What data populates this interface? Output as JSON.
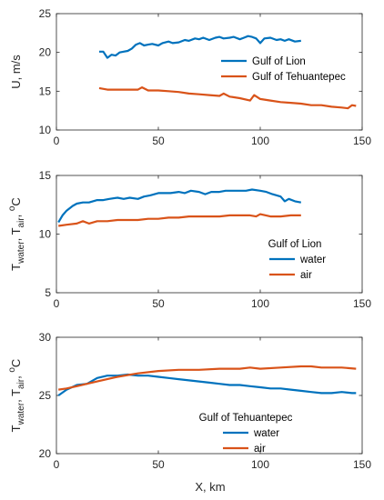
{
  "figure": {
    "xlabel": "X, km"
  },
  "colors": {
    "blue": "#0072BD",
    "orange": "#D95319"
  },
  "chart_data": [
    {
      "type": "line",
      "ylabel": "U, m/s",
      "xlim": [
        0,
        150
      ],
      "ylim": [
        10,
        25
      ],
      "xticks": [
        0,
        50,
        100,
        150
      ],
      "yticks": [
        10,
        15,
        20,
        25
      ],
      "legend": {
        "placement": "right",
        "title": ""
      },
      "series": [
        {
          "name": "Gulf of Lion",
          "color": "#0072BD",
          "x": [
            21,
            23,
            25,
            27,
            29,
            31,
            33,
            35,
            37,
            39,
            41,
            43,
            45,
            47,
            50,
            52,
            55,
            57,
            60,
            63,
            65,
            68,
            70,
            72,
            75,
            78,
            80,
            82,
            85,
            87,
            90,
            92,
            94,
            96,
            98,
            100,
            102,
            105,
            108,
            110,
            112,
            114,
            117,
            120
          ],
          "y": [
            20.1,
            20.1,
            19.3,
            19.7,
            19.6,
            20.0,
            20.1,
            20.2,
            20.5,
            21.0,
            21.2,
            20.9,
            21.0,
            21.1,
            20.9,
            21.2,
            21.4,
            21.2,
            21.3,
            21.6,
            21.5,
            21.8,
            21.7,
            21.9,
            21.6,
            21.9,
            22.0,
            21.8,
            21.9,
            22.0,
            21.7,
            21.9,
            22.1,
            22.0,
            21.8,
            21.2,
            21.8,
            21.9,
            21.6,
            21.7,
            21.5,
            21.7,
            21.4,
            21.5
          ]
        },
        {
          "name": "Gulf of Tehuantepec",
          "color": "#D95319",
          "x": [
            21,
            25,
            30,
            35,
            40,
            42,
            45,
            50,
            55,
            60,
            65,
            70,
            75,
            80,
            82,
            85,
            90,
            95,
            97,
            100,
            105,
            110,
            115,
            120,
            125,
            130,
            135,
            140,
            143,
            145,
            147
          ],
          "y": [
            15.4,
            15.2,
            15.2,
            15.2,
            15.2,
            15.5,
            15.1,
            15.1,
            15.0,
            14.9,
            14.7,
            14.6,
            14.5,
            14.4,
            14.7,
            14.3,
            14.1,
            13.8,
            14.5,
            14.0,
            13.8,
            13.6,
            13.5,
            13.4,
            13.2,
            13.2,
            13.0,
            12.9,
            12.8,
            13.2,
            13.1
          ]
        }
      ]
    },
    {
      "type": "line",
      "ylabel_main": "T",
      "ylabel_sub1": "water",
      "ylabel_mid": ", T",
      "ylabel_sub2": "air",
      "ylabel_end": ", ",
      "ylabel_sup": "o",
      "ylabel_unit": "C",
      "xlim": [
        0,
        150
      ],
      "ylim": [
        5,
        15
      ],
      "xticks": [
        0,
        50,
        100,
        150
      ],
      "yticks": [
        5,
        10,
        15
      ],
      "legend": {
        "placement": "bottom-right",
        "title": "Gulf of Lion"
      },
      "series": [
        {
          "name": "water",
          "color": "#0072BD",
          "x": [
            1,
            3,
            5,
            8,
            10,
            13,
            16,
            20,
            23,
            26,
            30,
            33,
            36,
            40,
            43,
            46,
            50,
            53,
            56,
            60,
            63,
            66,
            70,
            73,
            76,
            80,
            83,
            86,
            90,
            93,
            96,
            100,
            103,
            106,
            110,
            112,
            114,
            117,
            120
          ],
          "y": [
            11.0,
            11.6,
            12.0,
            12.4,
            12.6,
            12.7,
            12.7,
            12.9,
            12.9,
            13.0,
            13.1,
            13.0,
            13.1,
            13.0,
            13.2,
            13.3,
            13.5,
            13.5,
            13.5,
            13.6,
            13.5,
            13.7,
            13.6,
            13.4,
            13.6,
            13.6,
            13.7,
            13.7,
            13.7,
            13.7,
            13.8,
            13.7,
            13.6,
            13.4,
            13.2,
            12.8,
            13.0,
            12.8,
            12.7
          ]
        },
        {
          "name": "air",
          "color": "#D95319",
          "x": [
            1,
            5,
            10,
            13,
            16,
            20,
            25,
            30,
            35,
            40,
            45,
            50,
            55,
            60,
            65,
            70,
            75,
            80,
            85,
            90,
            95,
            98,
            100,
            105,
            110,
            115,
            120
          ],
          "y": [
            10.7,
            10.8,
            10.9,
            11.1,
            10.9,
            11.1,
            11.1,
            11.2,
            11.2,
            11.2,
            11.3,
            11.3,
            11.4,
            11.4,
            11.5,
            11.5,
            11.5,
            11.5,
            11.6,
            11.6,
            11.6,
            11.5,
            11.7,
            11.5,
            11.5,
            11.6,
            11.6
          ]
        }
      ]
    },
    {
      "type": "line",
      "ylabel_main": "T",
      "ylabel_sub1": "water",
      "ylabel_mid": ", T",
      "ylabel_sub2": "air",
      "ylabel_end": ", ",
      "ylabel_sup": "o",
      "ylabel_unit": "C",
      "xlim": [
        0,
        150
      ],
      "ylim": [
        20,
        30
      ],
      "xticks": [
        0,
        50,
        100,
        150
      ],
      "yticks": [
        20,
        25,
        30
      ],
      "legend": {
        "placement": "bottom-right",
        "title": "Gulf of Tehuantepec"
      },
      "series": [
        {
          "name": "water",
          "color": "#0072BD",
          "x": [
            1,
            5,
            10,
            15,
            20,
            25,
            30,
            35,
            40,
            45,
            50,
            55,
            60,
            65,
            70,
            75,
            80,
            85,
            90,
            95,
            100,
            105,
            110,
            115,
            120,
            125,
            130,
            135,
            140,
            145,
            147
          ],
          "y": [
            25.0,
            25.5,
            25.9,
            26.0,
            26.5,
            26.7,
            26.7,
            26.8,
            26.7,
            26.7,
            26.6,
            26.5,
            26.4,
            26.3,
            26.2,
            26.1,
            26.0,
            25.9,
            25.9,
            25.8,
            25.7,
            25.6,
            25.6,
            25.5,
            25.4,
            25.3,
            25.2,
            25.2,
            25.3,
            25.2,
            25.2
          ]
        },
        {
          "name": "air",
          "color": "#D95319",
          "x": [
            1,
            5,
            10,
            20,
            30,
            40,
            50,
            60,
            70,
            80,
            90,
            95,
            100,
            110,
            120,
            125,
            130,
            140,
            147
          ],
          "y": [
            25.5,
            25.6,
            25.8,
            26.2,
            26.6,
            26.9,
            27.1,
            27.2,
            27.2,
            27.3,
            27.3,
            27.4,
            27.3,
            27.4,
            27.5,
            27.5,
            27.4,
            27.4,
            27.3
          ]
        }
      ]
    }
  ]
}
